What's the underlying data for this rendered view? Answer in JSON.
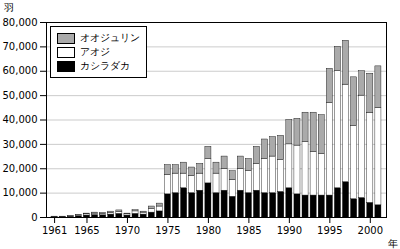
{
  "chart_data": {
    "type": "bar",
    "stacked": true,
    "x": [
      1961,
      1962,
      1963,
      1964,
      1965,
      1966,
      1967,
      1968,
      1969,
      1970,
      1971,
      1972,
      1973,
      1974,
      1975,
      1976,
      1977,
      1978,
      1979,
      1980,
      1981,
      1982,
      1983,
      1984,
      1985,
      1986,
      1987,
      1988,
      1989,
      1990,
      1991,
      1992,
      1993,
      1994,
      1995,
      1996,
      1997,
      1998,
      1999,
      2000,
      2001
    ],
    "series": [
      {
        "name": "カシラダカ",
        "color": "#000000",
        "values": [
          200,
          200,
          300,
          500,
          800,
          1000,
          900,
          1200,
          1500,
          800,
          1500,
          1200,
          2000,
          2500,
          9500,
          10000,
          12000,
          10000,
          11000,
          14000,
          10000,
          11000,
          8500,
          11000,
          10000,
          11000,
          10000,
          10000,
          10500,
          12000,
          9500,
          9000,
          9000,
          9000,
          9000,
          12000,
          14500,
          7500,
          8000,
          6000,
          5000
        ]
      },
      {
        "name": "アオジ",
        "color": "#ffffff",
        "values": [
          100,
          100,
          200,
          300,
          500,
          600,
          600,
          700,
          800,
          500,
          1000,
          800,
          1500,
          2000,
          8000,
          8000,
          6000,
          7000,
          7000,
          10000,
          8000,
          9000,
          7000,
          9000,
          9000,
          11000,
          14000,
          15000,
          13000,
          18000,
          20000,
          22000,
          18000,
          17000,
          38000,
          48000,
          40000,
          30000,
          42000,
          37000,
          40000
        ]
      },
      {
        "name": "オオジュリン",
        "color": "#aaaaaa",
        "values": [
          50,
          50,
          100,
          200,
          300,
          400,
          400,
          500,
          600,
          300,
          500,
          400,
          1000,
          1200,
          4000,
          3500,
          4500,
          3500,
          4000,
          5000,
          4500,
          5000,
          3500,
          5000,
          5000,
          7000,
          8000,
          8000,
          10000,
          10000,
          11000,
          12000,
          16000,
          16000,
          14000,
          10000,
          18000,
          20000,
          10000,
          16000,
          17000
        ]
      }
    ],
    "xlabel": "年",
    "ylabel": "羽",
    "xlim": [
      1960,
      2002
    ],
    "xticks": [
      1961,
      1965,
      1970,
      1975,
      1980,
      1985,
      1990,
      1995,
      2000
    ],
    "ylim": [
      0,
      80000
    ],
    "yticks": [
      0,
      {
        "value": 10000,
        "label": "10,000"
      },
      {
        "value": 20000,
        "label": "20,000"
      },
      {
        "value": 30000,
        "label": "30,000"
      },
      {
        "value": 40000,
        "label": "40,000"
      },
      {
        "value": 50000,
        "label": "50,000"
      },
      {
        "value": 60000,
        "label": "60,000"
      },
      {
        "value": 70000,
        "label": "70,000"
      },
      {
        "value": 80000,
        "label": "80,000"
      }
    ],
    "grid": true,
    "legend": "upper left"
  }
}
